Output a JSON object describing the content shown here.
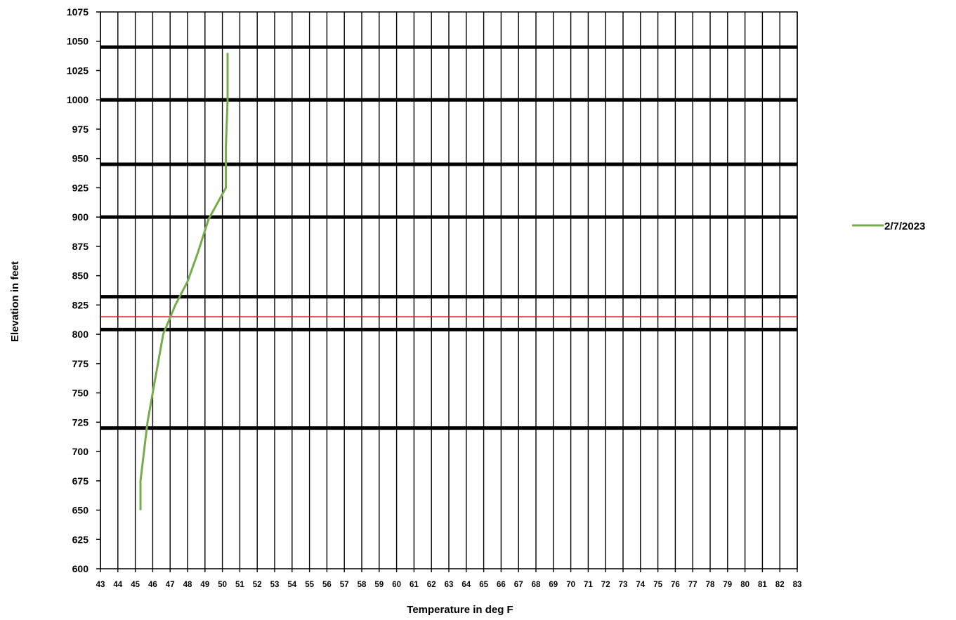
{
  "chart_data": {
    "type": "line",
    "title": "",
    "xlabel": "Temperature in deg F",
    "ylabel": "Elevation in feet",
    "xlim": [
      43,
      83
    ],
    "ylim": [
      600,
      1075
    ],
    "x_ticks": [
      43,
      44,
      45,
      46,
      47,
      48,
      49,
      50,
      51,
      52,
      53,
      54,
      55,
      56,
      57,
      58,
      59,
      60,
      61,
      62,
      63,
      64,
      65,
      66,
      67,
      68,
      69,
      70,
      71,
      72,
      73,
      74,
      75,
      76,
      77,
      78,
      79,
      80,
      81,
      82,
      83
    ],
    "y_ticks": [
      600,
      625,
      650,
      675,
      700,
      725,
      750,
      775,
      800,
      825,
      850,
      875,
      900,
      925,
      950,
      975,
      1000,
      1025,
      1050,
      1075
    ],
    "grid": "vertical",
    "legend_position": "right",
    "series": [
      {
        "name": "2/7/2023",
        "color": "#77ab4b",
        "points": [
          {
            "x": 45.3,
            "y": 650
          },
          {
            "x": 45.3,
            "y": 675
          },
          {
            "x": 45.7,
            "y": 725
          },
          {
            "x": 46.0,
            "y": 750
          },
          {
            "x": 46.6,
            "y": 800
          },
          {
            "x": 47.3,
            "y": 825
          },
          {
            "x": 48.0,
            "y": 845
          },
          {
            "x": 48.6,
            "y": 870
          },
          {
            "x": 49.2,
            "y": 898
          },
          {
            "x": 50.2,
            "y": 925
          },
          {
            "x": 50.2,
            "y": 960
          },
          {
            "x": 50.3,
            "y": 1000
          },
          {
            "x": 50.3,
            "y": 1040
          }
        ]
      }
    ],
    "reference_lines": [
      {
        "y": 1045,
        "color": "#000000",
        "style": "thick"
      },
      {
        "y": 1000,
        "color": "#000000",
        "style": "thick"
      },
      {
        "y": 945,
        "color": "#000000",
        "style": "thick"
      },
      {
        "y": 900,
        "color": "#000000",
        "style": "thick"
      },
      {
        "y": 832,
        "color": "#000000",
        "style": "thick"
      },
      {
        "y": 815,
        "color": "#ff0000",
        "style": "thin"
      },
      {
        "y": 804,
        "color": "#000000",
        "style": "thick"
      },
      {
        "y": 720,
        "color": "#000000",
        "style": "thick"
      }
    ]
  }
}
